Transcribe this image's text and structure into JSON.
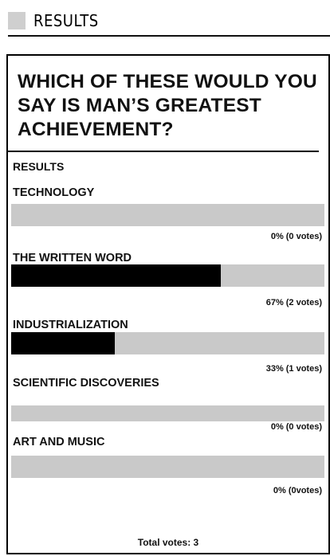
{
  "header": {
    "label": "RESULTS",
    "square_color": "#cfcfcf"
  },
  "poll": {
    "question": "WHICH OF THESE WOULD YOU SAY IS MAN’S GREATEST ACHIEVEMENT?",
    "section_title": "RESULTS",
    "options": [
      {
        "label": "TECHNOLOGY",
        "percent": 0,
        "percent_text": "0%",
        "votes_text": "(0 votes)"
      },
      {
        "label": "THE WRITTEN WORD",
        "percent": 67,
        "percent_text": "67%",
        "votes_text": "(2 votes)"
      },
      {
        "label": "INDUSTRIALIZATION",
        "percent": 33,
        "percent_text": "33%",
        "votes_text": "(1 votes)"
      },
      {
        "label": "SCIENTIFIC DISCOVERIES",
        "percent": 0,
        "percent_text": "0%",
        "votes_text": "(0 votes)"
      },
      {
        "label": "ART AND MUSIC",
        "percent": 0,
        "percent_text": "0%",
        "votes_text": "(0votes)"
      }
    ],
    "total_text": "Total votes: 3",
    "bar_track_color": "#c9c9c9",
    "bar_fill_color": "#000000"
  }
}
